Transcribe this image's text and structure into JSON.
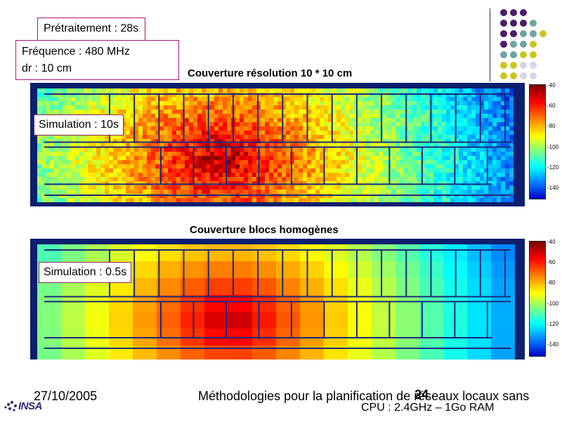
{
  "boxes": {
    "pretraitement": "Prétraitement : 28s",
    "frequence": "Fréquence : 480 MHz",
    "dr": "dr : 10 cm"
  },
  "top_panel": {
    "title": "Couverture résolution 10 * 10 cm",
    "simulation": "Simulation : 10s"
  },
  "bottom_panel": {
    "title": "Couverture blocs homogènes",
    "simulation": "Simulation : 0.5s"
  },
  "colorbar_ticks": [
    "-40",
    "-60",
    "-80",
    "-100",
    "-120",
    "-140"
  ],
  "footer": {
    "date": "27/10/2005",
    "title": "Méthodologies pour la planification de réseaux locaux sans",
    "page": "24",
    "cpu": "CPU : 2.4GHz – 1Go RAM",
    "logo": "INSA"
  },
  "colors": {
    "box_border": "#b0127a",
    "dot_purple": "#4b1a6b",
    "dot_teal": "#6fa3a3",
    "dot_yellow": "#c9c621",
    "dot_light": "#d6d6ea"
  }
}
